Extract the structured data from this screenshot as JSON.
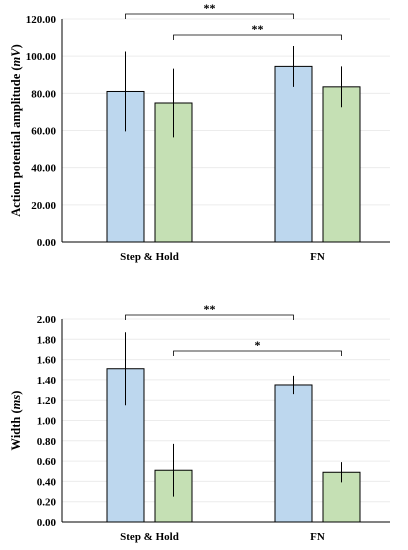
{
  "chart_data": [
    {
      "type": "bar",
      "categories": [
        "Step & Hold",
        "FN"
      ],
      "series": [
        {
          "values": [
            81.0,
            74.8
          ],
          "errors": [
            21.5,
            18.5
          ]
        },
        {
          "values": [
            94.5,
            83.5
          ],
          "errors": [
            11.0,
            11.0
          ]
        }
      ],
      "groups_note": "series[0] = left group bars, series[1] = right group bars",
      "ylabel_parts": [
        {
          "text": "Action potential amplitude (",
          "italic": false
        },
        {
          "text": "mV",
          "italic": true
        },
        {
          "text": ")",
          "italic": false
        }
      ],
      "ylim": [
        0,
        120
      ],
      "yticks": [
        0,
        20,
        40,
        60,
        80,
        100,
        120
      ],
      "ytick_labels": [
        "0.00",
        "20.00",
        "40.00",
        "60.00",
        "80.00",
        "100.00",
        "120.00"
      ],
      "significance": [
        {
          "from_group": 0,
          "from_bar": 0,
          "to_group": 1,
          "to_bar": 0,
          "label": "**"
        },
        {
          "from_group": 0,
          "from_bar": 1,
          "to_group": 1,
          "to_bar": 1,
          "label": "**"
        }
      ],
      "grid": true
    },
    {
      "type": "bar",
      "categories": [
        "Step & Hold",
        "FN"
      ],
      "series": [
        {
          "values": [
            1.51,
            0.51
          ],
          "errors": [
            0.36,
            0.26
          ]
        },
        {
          "values": [
            1.35,
            0.49
          ],
          "errors": [
            0.09,
            0.1
          ]
        }
      ],
      "groups_note": "series[0] = left group bars, series[1] = right group bars",
      "ylabel_parts": [
        {
          "text": "Width (",
          "italic": false
        },
        {
          "text": "ms",
          "italic": true
        },
        {
          "text": ")",
          "italic": false
        }
      ],
      "ylim": [
        0,
        2
      ],
      "yticks": [
        0,
        0.2,
        0.4,
        0.6,
        0.8,
        1.0,
        1.2,
        1.4,
        1.6,
        1.8,
        2.0
      ],
      "ytick_labels": [
        "0.00",
        "0.20",
        "0.40",
        "0.60",
        "0.80",
        "1.00",
        "1.20",
        "1.40",
        "1.60",
        "1.80",
        "2.00"
      ],
      "significance": [
        {
          "from_group": 0,
          "from_bar": 0,
          "to_group": 1,
          "to_bar": 0,
          "label": "**"
        },
        {
          "from_group": 0,
          "from_bar": 1,
          "to_group": 1,
          "to_bar": 1,
          "label": "*"
        }
      ],
      "grid": true
    }
  ],
  "colors": {
    "bar_blue": "#bdd7ee",
    "bar_green": "#c5e0b4",
    "bar_edge": "#000000",
    "grid": "#ececec",
    "axis": "#000000"
  }
}
